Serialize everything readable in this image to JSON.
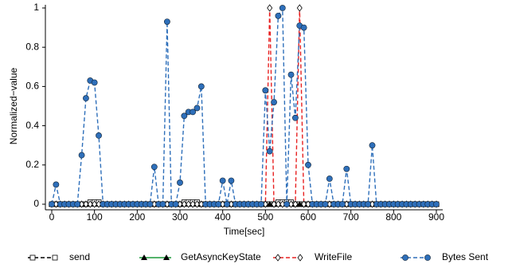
{
  "chart_data": {
    "type": "line",
    "x_label": "Time[sec]",
    "y_label": "Normalized−value",
    "x": [
      0,
      10,
      20,
      30,
      40,
      50,
      60,
      70,
      80,
      90,
      100,
      110,
      120,
      130,
      140,
      150,
      160,
      170,
      180,
      190,
      200,
      210,
      220,
      230,
      240,
      250,
      260,
      270,
      280,
      290,
      300,
      310,
      320,
      330,
      340,
      350,
      360,
      370,
      380,
      390,
      400,
      410,
      420,
      430,
      440,
      450,
      460,
      470,
      480,
      490,
      500,
      510,
      520,
      530,
      540,
      550,
      560,
      570,
      580,
      590,
      600,
      610,
      620,
      630,
      640,
      650,
      660,
      670,
      680,
      690,
      700,
      710,
      720,
      730,
      740,
      750,
      760,
      770,
      780,
      790,
      800,
      810,
      820,
      830,
      840,
      850,
      860,
      870,
      880,
      890,
      900
    ],
    "xlim": [
      0,
      900
    ],
    "xticks": [
      0,
      100,
      200,
      300,
      400,
      500,
      600,
      700,
      800,
      900
    ],
    "ylim": [
      0,
      1
    ],
    "yticks": [
      0,
      0.2,
      0.4,
      0.6,
      0.8,
      1
    ],
    "series": [
      {
        "name": "send",
        "color": "#000000",
        "marker": "square",
        "values": [
          0,
          0,
          0,
          0,
          0,
          0,
          0,
          0,
          0,
          0.01,
          0.01,
          0.01,
          0,
          0,
          0,
          0,
          0,
          0,
          0,
          0,
          0,
          0,
          0,
          0,
          0,
          0,
          0,
          0,
          0,
          0,
          0,
          0.01,
          0.01,
          0.01,
          0.01,
          0,
          0,
          0,
          0,
          0,
          0,
          0,
          0,
          0,
          0,
          0,
          0,
          0,
          0,
          0,
          0,
          0,
          0,
          0.01,
          0.01,
          0.01,
          0.01,
          0,
          0,
          0,
          0,
          0,
          0,
          0,
          0,
          0,
          0,
          0,
          0,
          0,
          0,
          0,
          0,
          0,
          0,
          0,
          0,
          0,
          0,
          0,
          0,
          0,
          0,
          0,
          0,
          0,
          0,
          0,
          0,
          0,
          0
        ]
      },
      {
        "name": "GetAsyncKeyState",
        "color": "#1a9a3a",
        "marker": "triangle",
        "values": [
          0,
          0,
          0,
          0,
          0,
          0,
          0,
          0,
          0,
          0,
          0,
          0,
          0,
          0,
          0,
          0,
          0,
          0,
          0,
          0,
          0,
          0,
          0,
          0,
          0,
          0,
          0,
          0,
          0,
          0,
          0,
          0,
          0,
          0,
          0,
          0,
          0,
          0,
          0,
          0,
          0,
          0,
          0,
          0,
          0,
          0,
          0,
          0,
          0,
          0,
          0,
          0,
          0,
          0,
          0,
          0,
          0,
          0,
          0,
          0,
          0,
          0,
          0,
          0,
          0,
          0,
          0,
          0,
          0,
          0,
          0,
          0,
          0,
          0,
          0,
          0,
          0,
          0,
          0,
          0,
          0,
          0,
          0,
          0,
          0,
          0,
          0,
          0,
          0,
          0,
          0
        ]
      },
      {
        "name": "WriteFile",
        "color": "#e82020",
        "marker": "diamond",
        "values": [
          0,
          0,
          0,
          0,
          0,
          0,
          0,
          0,
          0,
          0,
          0,
          0,
          0,
          0,
          0,
          0,
          0,
          0,
          0,
          0,
          0,
          0,
          0,
          0,
          0,
          0,
          0,
          0,
          0,
          0,
          0,
          0,
          0,
          0,
          0,
          0,
          0,
          0,
          0,
          0,
          0,
          0,
          0,
          0,
          0,
          0,
          0,
          0,
          0,
          0,
          0,
          1,
          0,
          0,
          0,
          0,
          0,
          0,
          1,
          0,
          0,
          0,
          0,
          0,
          0,
          0,
          0,
          0,
          0,
          0,
          0,
          0,
          0,
          0,
          0,
          0,
          0,
          0,
          0,
          0,
          0,
          0,
          0,
          0,
          0,
          0,
          0,
          0,
          0,
          0,
          0
        ]
      },
      {
        "name": "Bytes Sent",
        "color": "#2e6fba",
        "marker": "circle",
        "values": [
          0,
          0.1,
          0,
          0,
          0,
          0,
          0,
          0.25,
          0.54,
          0.63,
          0.62,
          0.35,
          0,
          0,
          0,
          0,
          0,
          0,
          0,
          0,
          0,
          0,
          0,
          0,
          0.19,
          0,
          0,
          0.93,
          0,
          0,
          0.11,
          0.45,
          0.47,
          0.47,
          0.49,
          0.6,
          0,
          0,
          0,
          0,
          0.12,
          0,
          0.12,
          0,
          0,
          0,
          0,
          0,
          0,
          0,
          0.58,
          0.27,
          0.52,
          0.96,
          1,
          0,
          0.66,
          0.44,
          0.91,
          0.9,
          0.2,
          0,
          0,
          0,
          0,
          0.13,
          0,
          0,
          0,
          0.18,
          0,
          0,
          0,
          0,
          0,
          0.3,
          0,
          0,
          0,
          0,
          0,
          0,
          0,
          0,
          0,
          0,
          0,
          0,
          0,
          0,
          0
        ]
      }
    ]
  }
}
